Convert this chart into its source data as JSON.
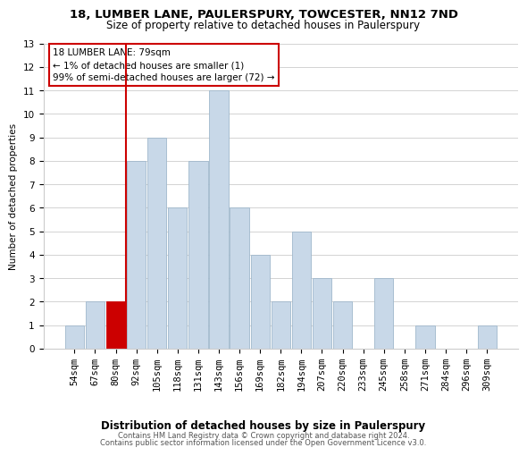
{
  "title": "18, LUMBER LANE, PAULERSPURY, TOWCESTER, NN12 7ND",
  "subtitle": "Size of property relative to detached houses in Paulerspury",
  "bar_labels": [
    "54sqm",
    "67sqm",
    "80sqm",
    "92sqm",
    "105sqm",
    "118sqm",
    "131sqm",
    "143sqm",
    "156sqm",
    "169sqm",
    "182sqm",
    "194sqm",
    "207sqm",
    "220sqm",
    "233sqm",
    "245sqm",
    "258sqm",
    "271sqm",
    "284sqm",
    "296sqm",
    "309sqm"
  ],
  "bar_values": [
    1,
    2,
    2,
    8,
    9,
    6,
    8,
    11,
    6,
    4,
    2,
    5,
    3,
    2,
    0,
    3,
    0,
    1,
    0,
    0,
    1
  ],
  "bar_color": "#c8d8e8",
  "bar_edge_color": "#a0b8cc",
  "highlight_bar_index": 2,
  "highlight_bar_color": "#cc0000",
  "ylabel": "Number of detached properties",
  "xlabel": "Distribution of detached houses by size in Paulerspury",
  "ylim": [
    0,
    13
  ],
  "yticks": [
    0,
    1,
    2,
    3,
    4,
    5,
    6,
    7,
    8,
    9,
    10,
    11,
    12,
    13
  ],
  "annotation_title": "18 LUMBER LANE: 79sqm",
  "annotation_line1": "← 1% of detached houses are smaller (1)",
  "annotation_line2": "99% of semi-detached houses are larger (72) →",
  "footer_line1": "Contains HM Land Registry data © Crown copyright and database right 2024.",
  "footer_line2": "Contains public sector information licensed under the Open Government Licence v3.0.",
  "bg_color": "#ffffff",
  "grid_color": "#cccccc",
  "title_fontsize": 9.5,
  "subtitle_fontsize": 8.5,
  "xlabel_fontsize": 8.5,
  "ylabel_fontsize": 7.5,
  "tick_fontsize": 7.5,
  "footer_fontsize": 6.0,
  "annot_fontsize": 7.5
}
